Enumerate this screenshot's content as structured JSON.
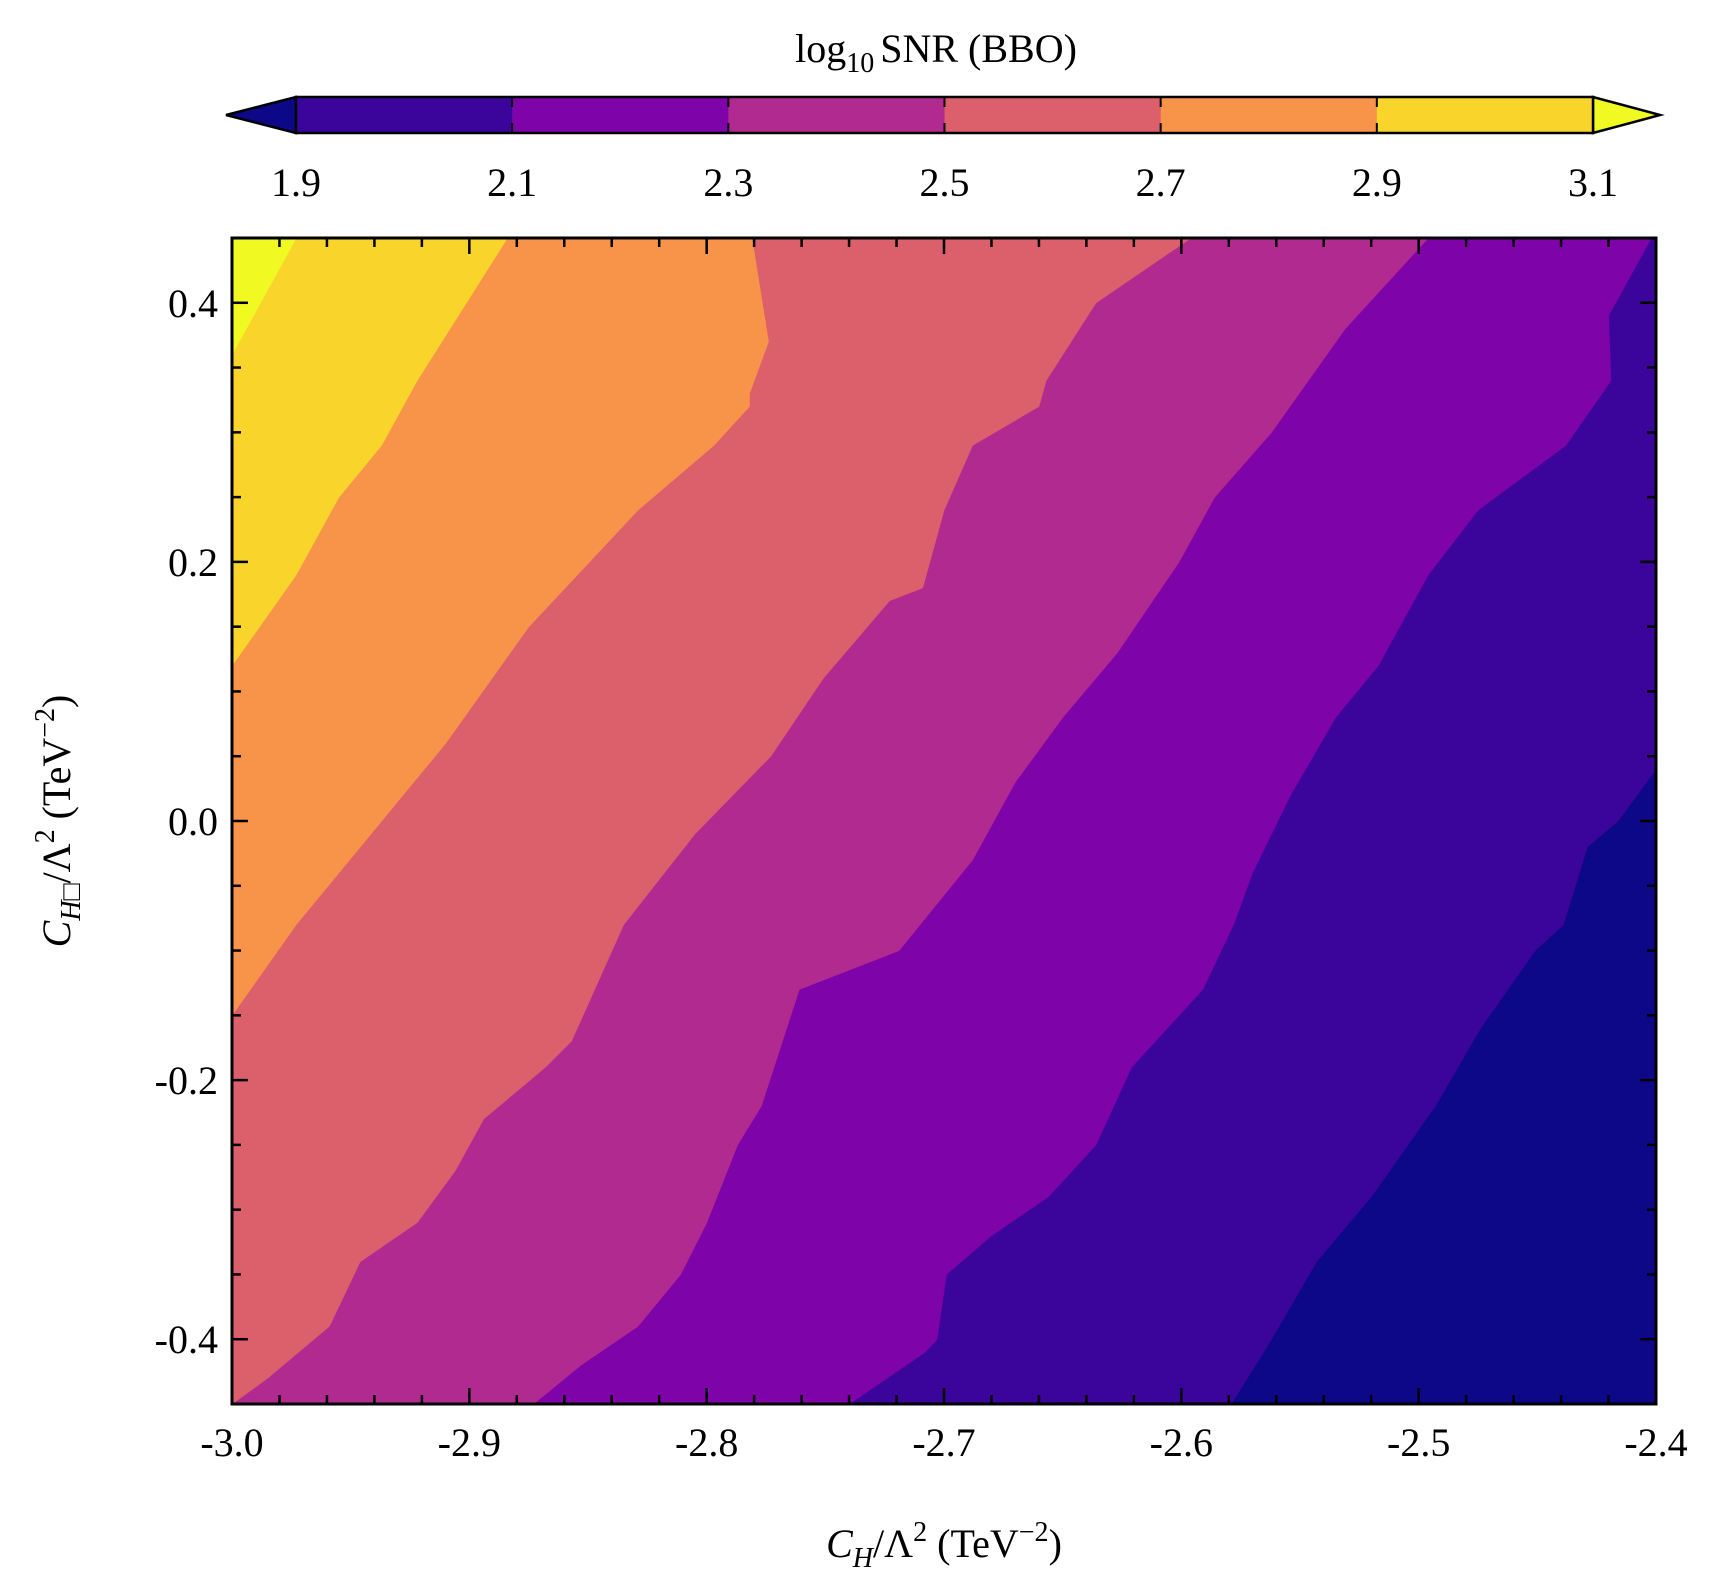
{
  "chart_data": {
    "type": "heatmap",
    "subtype": "filled-contour",
    "colorbar": {
      "title_main": "log",
      "title_sub": "10",
      "title_rest": "SNR (BBO)",
      "orientation": "horizontal",
      "placement": "top",
      "extend": "both",
      "levels": [
        1.9,
        2.1,
        2.3,
        2.5,
        2.7,
        2.9,
        3.1
      ],
      "tick_labels": [
        "1.9",
        "2.1",
        "2.3",
        "2.5",
        "2.7",
        "2.9",
        "3.1"
      ],
      "colors": [
        "#3b049a",
        "#7e03a8",
        "#b12a90",
        "#dc5f6c",
        "#f7944a",
        "#f9d52c"
      ],
      "under_color": "#0d0887",
      "over_color": "#f0f921"
    },
    "xlabel": {
      "main": "C",
      "sub": "H",
      "rest": "/Λ",
      "sup": "2",
      "unit": " (TeV",
      "unit_sup": "−2",
      "close": ")"
    },
    "ylabel": {
      "main": "C",
      "sub": "H□",
      "rest": "/Λ",
      "sup": "2",
      "unit": " (TeV",
      "unit_sup": "−2",
      "close": ")"
    },
    "xlim": [
      -3.0,
      -2.4
    ],
    "ylim": [
      -0.45,
      0.45
    ],
    "xticks": [
      -3.0,
      -2.9,
      -2.8,
      -2.7,
      -2.6,
      -2.5,
      -2.4
    ],
    "xtick_labels": [
      "-3.0",
      "-2.9",
      "-2.8",
      "-2.7",
      "-2.6",
      "-2.5",
      "-2.4"
    ],
    "yticks": [
      -0.4,
      -0.2,
      0.0,
      0.2,
      0.4
    ],
    "ytick_labels": [
      "-0.4",
      "-0.2",
      "0.0",
      "0.2",
      "0.4"
    ],
    "grid": false,
    "contour_boundaries": [
      {
        "level": 3.1,
        "points": [
          [
            -3.0,
            0.36
          ],
          [
            -2.973,
            0.45
          ]
        ]
      },
      {
        "level": 2.9,
        "points": [
          [
            -3.0,
            0.12
          ],
          [
            -2.973,
            0.19
          ],
          [
            -2.955,
            0.25
          ],
          [
            -2.946,
            0.27
          ],
          [
            -2.937,
            0.29
          ],
          [
            -2.922,
            0.34
          ],
          [
            -2.884,
            0.45
          ]
        ]
      },
      {
        "level": 2.7,
        "points": [
          [
            -3.0,
            -0.15
          ],
          [
            -2.973,
            -0.08
          ],
          [
            -2.946,
            -0.02
          ],
          [
            -2.91,
            0.06
          ],
          [
            -2.875,
            0.15
          ],
          [
            -2.829,
            0.24
          ],
          [
            -2.797,
            0.29
          ],
          [
            -2.782,
            0.32
          ],
          [
            -2.782,
            0.33
          ],
          [
            -2.774,
            0.37
          ],
          [
            -2.781,
            0.45
          ]
        ]
      },
      {
        "level": 2.5,
        "points": [
          [
            -3.0,
            -0.45
          ],
          [
            -2.985,
            -0.43
          ],
          [
            -2.959,
            -0.39
          ],
          [
            -2.946,
            -0.34
          ],
          [
            -2.922,
            -0.31
          ],
          [
            -2.906,
            -0.27
          ],
          [
            -2.894,
            -0.23
          ],
          [
            -2.868,
            -0.19
          ],
          [
            -2.857,
            -0.17
          ],
          [
            -2.835,
            -0.08
          ],
          [
            -2.805,
            -0.01
          ],
          [
            -2.773,
            0.05
          ],
          [
            -2.751,
            0.11
          ],
          [
            -2.723,
            0.17
          ],
          [
            -2.709,
            0.18
          ],
          [
            -2.7,
            0.24
          ],
          [
            -2.688,
            0.29
          ],
          [
            -2.66,
            0.32
          ],
          [
            -2.657,
            0.34
          ],
          [
            -2.636,
            0.4
          ],
          [
            -2.596,
            0.45
          ]
        ]
      },
      {
        "level": 2.3,
        "points": [
          [
            -2.873,
            -0.45
          ],
          [
            -2.853,
            -0.42
          ],
          [
            -2.829,
            -0.39
          ],
          [
            -2.811,
            -0.35
          ],
          [
            -2.8,
            -0.31
          ],
          [
            -2.787,
            -0.25
          ],
          [
            -2.777,
            -0.22
          ],
          [
            -2.761,
            -0.13
          ],
          [
            -2.719,
            -0.1
          ],
          [
            -2.688,
            -0.03
          ],
          [
            -2.67,
            0.03
          ],
          [
            -2.65,
            0.08
          ],
          [
            -2.627,
            0.13
          ],
          [
            -2.601,
            0.2
          ],
          [
            -2.586,
            0.25
          ],
          [
            -2.562,
            0.3
          ],
          [
            -2.531,
            0.38
          ],
          [
            -2.496,
            0.45
          ]
        ]
      },
      {
        "level": 2.1,
        "points": [
          [
            -2.74,
            -0.45
          ],
          [
            -2.708,
            -0.41
          ],
          [
            -2.703,
            -0.4
          ],
          [
            -2.699,
            -0.35
          ],
          [
            -2.68,
            -0.32
          ],
          [
            -2.656,
            -0.29
          ],
          [
            -2.636,
            -0.25
          ],
          [
            -2.621,
            -0.19
          ],
          [
            -2.591,
            -0.13
          ],
          [
            -2.578,
            -0.08
          ],
          [
            -2.57,
            -0.04
          ],
          [
            -2.554,
            0.02
          ],
          [
            -2.535,
            0.08
          ],
          [
            -2.517,
            0.12
          ],
          [
            -2.496,
            0.19
          ],
          [
            -2.475,
            0.24
          ],
          [
            -2.438,
            0.29
          ],
          [
            -2.419,
            0.34
          ],
          [
            -2.42,
            0.39
          ],
          [
            -2.402,
            0.45
          ]
        ]
      },
      {
        "level": 1.9,
        "points": [
          [
            -2.579,
            -0.45
          ],
          [
            -2.562,
            -0.4
          ],
          [
            -2.543,
            -0.34
          ],
          [
            -2.52,
            -0.29
          ],
          [
            -2.493,
            -0.22
          ],
          [
            -2.474,
            -0.16
          ],
          [
            -2.451,
            -0.1
          ],
          [
            -2.439,
            -0.08
          ],
          [
            -2.434,
            -0.05
          ],
          [
            -2.429,
            -0.02
          ],
          [
            -2.416,
            0.0
          ],
          [
            -2.408,
            0.02
          ],
          [
            -2.4,
            0.04
          ]
        ]
      }
    ]
  }
}
